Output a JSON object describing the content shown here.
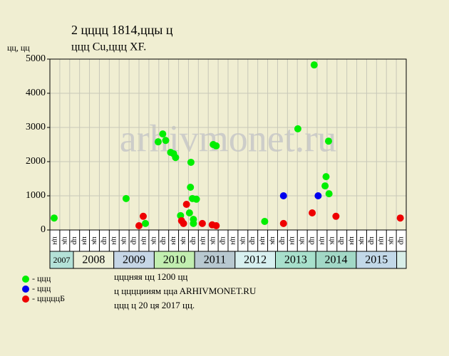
{
  "chart_data": {
    "type": "scatter",
    "title": "2 цццц 1814,ццы ц",
    "subtitle": "ццц Cu,ццц XF.",
    "y_label": "цц, цц",
    "watermark": "arhivmonet.ru",
    "categories": [
      "цн",
      "цк",
      "цр",
      "цн",
      "цк",
      "цр",
      "цн",
      "цк",
      "цр",
      "цн",
      "цк",
      "цр",
      "цн",
      "цк",
      "цр",
      "цн",
      "цк",
      "цр",
      "цн",
      "цк",
      "цр",
      "цн",
      "цк",
      "цр",
      "цн",
      "цк",
      "цр",
      "цн",
      "цк",
      "цр",
      "цн",
      "цк",
      "цр",
      "цн",
      "цк",
      "цр"
    ],
    "xlim": [
      0,
      36
    ],
    "ylim": [
      0,
      5000
    ],
    "yticks": [
      0,
      1000,
      2000,
      3000,
      4000,
      5000
    ],
    "grid": true,
    "years": [
      {
        "label": "2007",
        "color": "#b4e2d8"
      },
      {
        "label": "2008",
        "color": "#eef0d8"
      },
      {
        "label": "2009",
        "color": "#c6d6e6"
      },
      {
        "label": "2010",
        "color": "#c2eeb0"
      },
      {
        "label": "2011",
        "color": "#b8c8d0"
      },
      {
        "label": "2012",
        "color": "#d8f0f0"
      },
      {
        "label": "2013",
        "color": "#a8e0cc"
      },
      {
        "label": "2014",
        "color": "#a2d8c6"
      },
      {
        "label": "2015",
        "color": "#c2d8e8"
      }
    ],
    "series": [
      {
        "name": "- ццц",
        "color": "#00ee00",
        "x": [
          0.43,
          7.7,
          9.65,
          10.94,
          11.4,
          11.7,
          12.2,
          12.5,
          12.7,
          13.2,
          14.1,
          14.25,
          14.2,
          14.4,
          14.5,
          14.5,
          14.8,
          16.5,
          16.8,
          21.7,
          25.05,
          26.7,
          27.8,
          27.9,
          28.15,
          28.2
        ],
        "values": [
          350,
          920,
          190,
          2580,
          2810,
          2620,
          2270,
          2230,
          2120,
          420,
          500,
          1980,
          1250,
          920,
          190,
          310,
          900,
          2500,
          2460,
          250,
          2960,
          4830,
          1290,
          1560,
          2600,
          1060
        ]
      },
      {
        "name": "- ццц",
        "color": "#0000ee",
        "x": [
          23.6,
          27.1
        ],
        "values": [
          1000,
          1000
        ]
      },
      {
        "name": "- цццццБ",
        "color": "#ee0000",
        "x": [
          9.0,
          9.43,
          13.3,
          13.5,
          13.8,
          15.4,
          16.4,
          16.8,
          23.6,
          26.5,
          28.9,
          35.4
        ],
        "values": [
          125,
          400,
          270,
          190,
          750,
          190,
          150,
          125,
          190,
          500,
          400,
          350
        ]
      }
    ],
    "notes": [
      "цццняя цц 1200 цц",
      "ц ццццииям ццa ARHIVMONET.RU",
      "ццц ц 20 ця 2017 цц."
    ]
  }
}
